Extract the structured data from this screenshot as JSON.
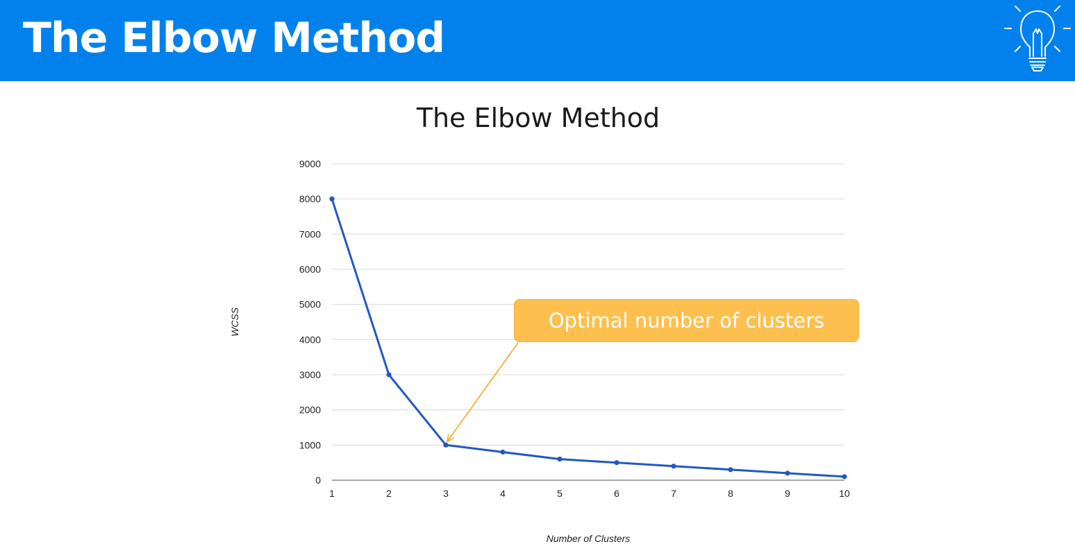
{
  "header": {
    "title": "The Elbow Method",
    "icon": "lightbulb-icon"
  },
  "colors": {
    "header_bg": "#0281ED",
    "line": "#2457C0",
    "callout_bg": "#FDC04F",
    "arrow": "#F6A623",
    "grid": "#DADADA"
  },
  "annotation": {
    "text": "Optimal number of clusters",
    "points_to_x": 3
  },
  "chart_data": {
    "type": "line",
    "title": "The Elbow Method",
    "xlabel": "Number of Clusters",
    "ylabel": "WCSS",
    "x": [
      1,
      2,
      3,
      4,
      5,
      6,
      7,
      8,
      9,
      10
    ],
    "series": [
      {
        "values": [
          8000,
          3000,
          1000,
          800,
          600,
          500,
          400,
          300,
          200,
          100
        ]
      }
    ],
    "ylim": [
      0,
      9000
    ],
    "yticks": [
      0,
      1000,
      2000,
      3000,
      4000,
      5000,
      6000,
      7000,
      8000,
      9000
    ],
    "xticks": [
      1,
      2,
      3,
      4,
      5,
      6,
      7,
      8,
      9,
      10
    ],
    "grid": true,
    "markers": true
  }
}
